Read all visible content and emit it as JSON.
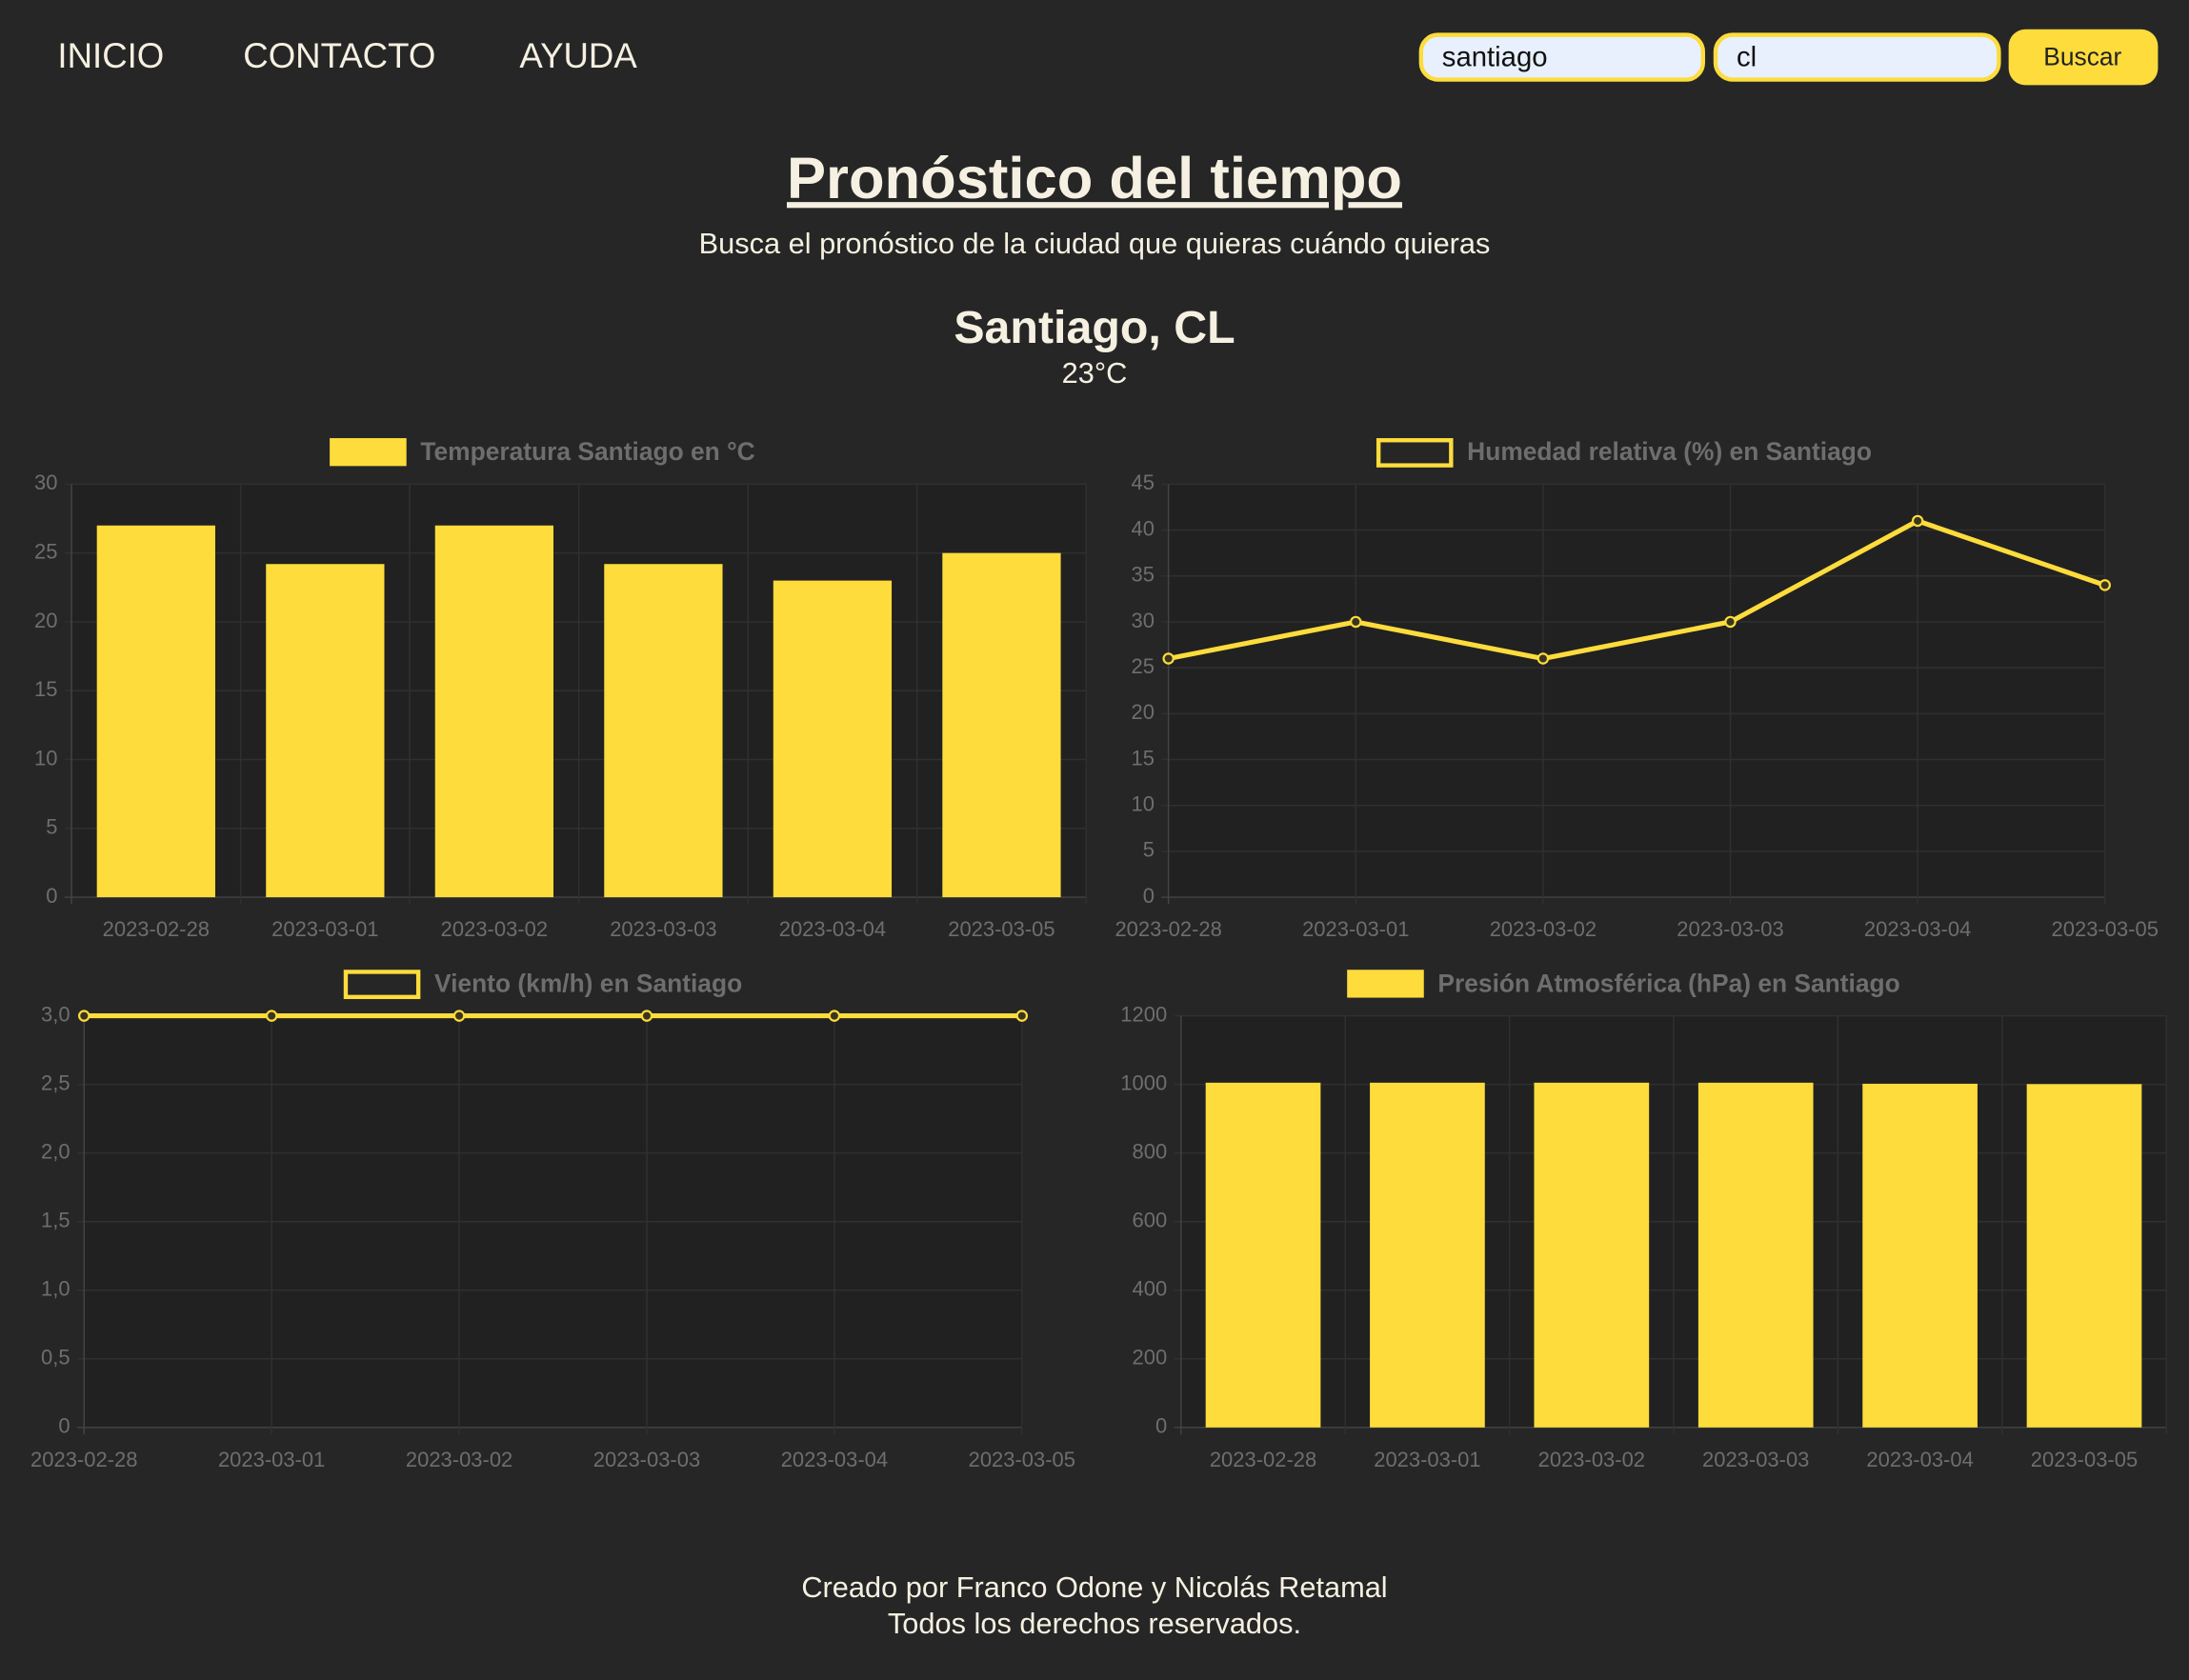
{
  "nav": [
    "INICIO",
    "CONTACTO",
    "AYUDA"
  ],
  "search": {
    "city": "santiago",
    "country": "cl",
    "button": "Buscar"
  },
  "header": {
    "title": "Pronóstico del tiempo",
    "subtitle": "Busca el pronóstico de la ciudad que quieras cuándo quieras"
  },
  "city": {
    "name": "Santiago, CL",
    "temperature": "23°C"
  },
  "chart_data": [
    {
      "type": "bar",
      "categories": [
        "2023-02-28",
        "2023-03-01",
        "2023-03-02",
        "2023-03-03",
        "2023-03-04",
        "2023-03-05"
      ],
      "series": [
        {
          "name": "Temperatura Santiago en °C",
          "color": "#fddc3c",
          "values": [
            27,
            24.2,
            27,
            24.2,
            23,
            25
          ]
        }
      ],
      "ylim": [
        0,
        30
      ],
      "yticks": [
        0,
        5,
        10,
        15,
        20,
        25,
        30
      ],
      "grid": true
    },
    {
      "type": "line",
      "categories": [
        "2023-02-28",
        "2023-03-01",
        "2023-03-02",
        "2023-03-03",
        "2023-03-04",
        "2023-03-05"
      ],
      "series": [
        {
          "name": "Humedad relativa (%) en Santiago",
          "color": "#fddc3c",
          "values": [
            26,
            30,
            26,
            30,
            41,
            34
          ]
        }
      ],
      "ylim": [
        0,
        45
      ],
      "yticks": [
        0,
        5,
        10,
        15,
        20,
        25,
        30,
        35,
        40,
        45
      ],
      "grid": true
    },
    {
      "type": "line",
      "categories": [
        "2023-02-28",
        "2023-03-01",
        "2023-03-02",
        "2023-03-03",
        "2023-03-04",
        "2023-03-05"
      ],
      "series": [
        {
          "name": "Viento (km/h) en Santiago",
          "color": "#fddc3c",
          "values": [
            3,
            3,
            3,
            3,
            3,
            3
          ]
        }
      ],
      "ylim": [
        0,
        3
      ],
      "yticks": [
        0,
        {
          "value": 0.5,
          "label": "0,5"
        },
        {
          "value": 1,
          "label": "1,0"
        },
        {
          "value": 1.5,
          "label": "1,5"
        },
        {
          "value": 2,
          "label": "2,0"
        },
        {
          "value": 2.5,
          "label": "2,5"
        },
        {
          "value": 3,
          "label": "3,0"
        }
      ],
      "grid": true
    },
    {
      "type": "bar",
      "categories": [
        "2023-02-28",
        "2023-03-01",
        "2023-03-02",
        "2023-03-03",
        "2023-03-04",
        "2023-03-05"
      ],
      "series": [
        {
          "name": "Presión Atmosférica (hPa) en Santiago",
          "color": "#fddc3c",
          "values": [
            1005,
            1005,
            1005,
            1005,
            1002,
            1001
          ]
        }
      ],
      "ylim": [
        0,
        1200
      ],
      "yticks": [
        0,
        200,
        400,
        600,
        800,
        1000,
        1200
      ],
      "grid": true
    }
  ],
  "footer": [
    "Creado por Franco Odone y Nicolás Retamal",
    "Todos los derechos reservados."
  ]
}
